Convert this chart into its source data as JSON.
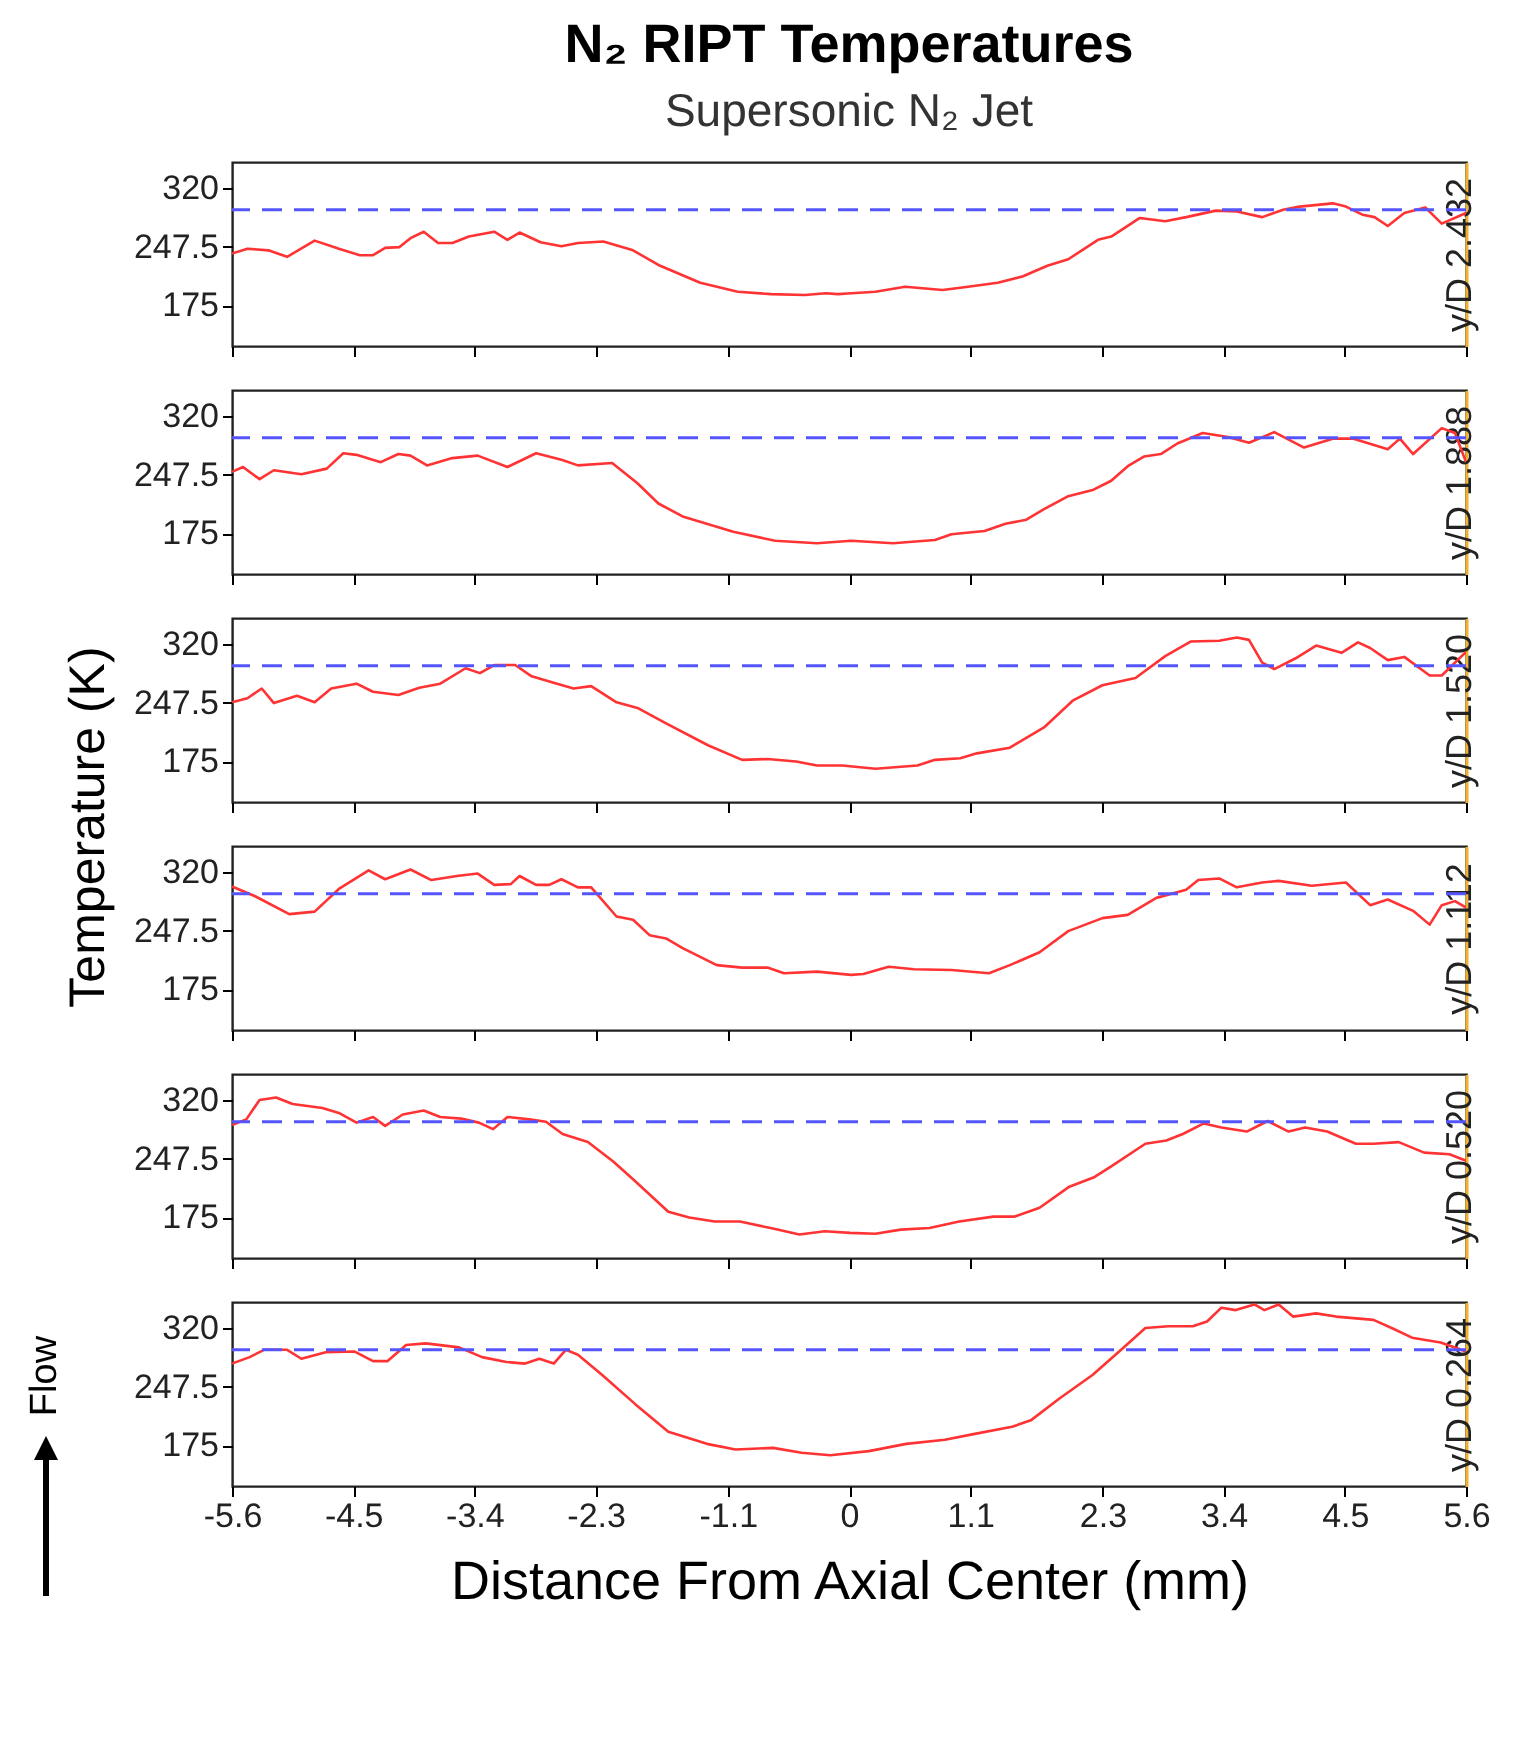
{
  "chart_data": [
    {
      "type": "line",
      "title": "N₂ RIPT Temperatures",
      "subtitle": "Supersonic N₂ Jet",
      "y2label": "y/D 2.432",
      "tick_labels": "y",
      "color": "#ff3333",
      "x": [
        -5.6,
        -5.46,
        -5.27,
        -5.1,
        -4.85,
        -4.63,
        -4.44,
        -4.32,
        -4.21,
        -4.08,
        -3.98,
        -3.86,
        -3.73,
        -3.6,
        -3.45,
        -3.22,
        -3.1,
        -2.99,
        -2.8,
        -2.61,
        -2.46,
        -2.23,
        -1.96,
        -1.73,
        -1.35,
        -1.01,
        -0.71,
        -0.4,
        -0.21,
        -0.1,
        0.02,
        0.24,
        0.51,
        0.85,
        1.08,
        1.35,
        1.58,
        1.8,
        1.99,
        2.26,
        2.38,
        2.64,
        2.87,
        3.06,
        3.33,
        3.52,
        3.75,
        3.94,
        4.09,
        4.39,
        4.51,
        4.66,
        4.77,
        4.89,
        5.04,
        5.23,
        5.38,
        5.6
      ],
      "values": [
        239,
        245,
        243,
        235,
        255,
        245,
        237,
        237,
        246,
        247,
        258,
        266,
        252,
        252,
        260,
        266,
        256,
        265,
        253,
        248,
        252,
        254,
        243,
        225,
        203,
        192,
        189,
        188,
        190,
        189,
        190,
        192,
        198,
        194,
        198,
        203,
        211,
        224,
        232,
        256,
        260,
        283,
        279,
        284,
        292,
        291,
        284,
        293,
        297,
        301,
        297,
        287,
        284,
        273,
        289,
        296,
        276,
        289
      ],
      "xlim": [
        -5.6,
        5.6
      ],
      "xticks": [
        -5.6,
        -4.5,
        -3.4,
        -2.3,
        -1.1,
        0,
        1.1,
        2.3,
        3.4,
        4.5,
        5.6
      ],
      "ylim": [
        125,
        352
      ],
      "yticks": [
        175,
        247.5,
        320
      ],
      "ref_lines": [
        {
          "axis": "y",
          "value": 293,
          "color": "#5555ff",
          "line_style": "dashed"
        }
      ]
    },
    {
      "type": "line",
      "y2label": "y/D 1.888",
      "tick_labels": "y",
      "color": "#ff3333",
      "x": [
        -5.6,
        -5.5,
        -5.35,
        -5.22,
        -4.97,
        -4.74,
        -4.59,
        -4.47,
        -4.25,
        -4.09,
        -3.98,
        -3.83,
        -3.6,
        -3.37,
        -3.1,
        -2.84,
        -2.61,
        -2.46,
        -2.15,
        -1.92,
        -1.73,
        -1.51,
        -1.05,
        -0.67,
        -0.29,
        0.02,
        0.4,
        0.78,
        0.93,
        1.23,
        1.42,
        1.61,
        1.77,
        1.99,
        2.22,
        2.38,
        2.53,
        2.68,
        2.83,
        2.98,
        3.21,
        3.44,
        3.63,
        3.86,
        4.13,
        4.39,
        4.58,
        4.89,
        5.0,
        5.12,
        5.38,
        5.5,
        5.6
      ],
      "values": [
        251,
        257,
        242,
        253,
        248,
        255,
        274,
        272,
        263,
        273,
        271,
        259,
        268,
        271,
        257,
        274,
        266,
        259,
        262,
        237,
        212,
        196,
        177,
        166,
        163,
        166,
        163,
        167,
        174,
        178,
        187,
        192,
        205,
        221,
        229,
        240,
        258,
        270,
        273,
        286,
        299,
        294,
        287,
        300,
        281,
        292,
        292,
        279,
        292,
        273,
        305,
        299,
        263
      ],
      "xlim": [
        -5.6,
        5.6
      ],
      "xticks": [
        -5.6,
        -4.5,
        -3.4,
        -2.3,
        -1.1,
        0,
        1.1,
        2.3,
        3.4,
        4.5,
        5.6
      ],
      "ylim": [
        125,
        352
      ],
      "yticks": [
        175,
        247.5,
        320
      ],
      "ref_lines": [
        {
          "axis": "y",
          "value": 293,
          "color": "#5555ff",
          "line_style": "dashed"
        }
      ]
    },
    {
      "type": "line",
      "y2label": "y/D 1.520",
      "tick_labels": "y",
      "color": "#ff3333",
      "ylabel": "Temperature (K)",
      "x": [
        -5.6,
        -5.46,
        -5.33,
        -5.22,
        -5.01,
        -4.85,
        -4.7,
        -4.47,
        -4.32,
        -4.09,
        -3.9,
        -3.71,
        -3.48,
        -3.35,
        -3.22,
        -3.03,
        -2.88,
        -2.65,
        -2.5,
        -2.34,
        -2.11,
        -1.92,
        -1.66,
        -1.28,
        -0.97,
        -0.74,
        -0.48,
        -0.29,
        -0.06,
        0.24,
        0.62,
        0.78,
        1.01,
        1.16,
        1.46,
        1.77,
        2.03,
        2.3,
        2.6,
        2.87,
        3.1,
        3.36,
        3.52,
        3.63,
        3.75,
        3.86,
        4.05,
        4.24,
        4.47,
        4.62,
        4.73,
        4.89,
        5.04,
        5.27,
        5.38,
        5.6
      ],
      "values": [
        248,
        253,
        265,
        247,
        256,
        248,
        265,
        271,
        261,
        257,
        266,
        271,
        290,
        284,
        294,
        294,
        280,
        271,
        265,
        268,
        248,
        241,
        222,
        195,
        177,
        178,
        175,
        170,
        170,
        166,
        170,
        177,
        179,
        185,
        192,
        217,
        250,
        269,
        278,
        305,
        323,
        324,
        328,
        325,
        297,
        289,
        302,
        318,
        309,
        322,
        315,
        300,
        304,
        281,
        281,
        310
      ],
      "xlim": [
        -5.6,
        5.6
      ],
      "xticks": [
        -5.6,
        -4.5,
        -3.4,
        -2.3,
        -1.1,
        0,
        1.1,
        2.3,
        3.4,
        4.5,
        5.6
      ],
      "ylim": [
        125,
        352
      ],
      "yticks": [
        175,
        247.5,
        320
      ],
      "ref_lines": [
        {
          "axis": "y",
          "value": 293,
          "color": "#5555ff",
          "line_style": "dashed"
        }
      ]
    },
    {
      "type": "line",
      "y2label": "y/D 1.112",
      "tick_labels": "y",
      "color": "#ff3333",
      "x": [
        -5.6,
        -5.39,
        -5.08,
        -4.85,
        -4.63,
        -4.36,
        -4.21,
        -3.98,
        -3.79,
        -3.56,
        -3.37,
        -3.22,
        -3.07,
        -2.99,
        -2.84,
        -2.72,
        -2.61,
        -2.46,
        -2.34,
        -2.11,
        -1.96,
        -1.81,
        -1.66,
        -1.51,
        -1.2,
        -0.97,
        -0.74,
        -0.59,
        -0.29,
        0.02,
        0.13,
        0.36,
        0.59,
        0.93,
        1.27,
        1.46,
        1.73,
        1.99,
        2.3,
        2.53,
        2.79,
        3.06,
        3.17,
        3.36,
        3.52,
        3.75,
        3.9,
        4.2,
        4.51,
        4.73,
        4.89,
        5.12,
        5.27,
        5.38,
        5.5,
        5.6
      ],
      "values": [
        302,
        290,
        268,
        271,
        299,
        322,
        311,
        323,
        310,
        315,
        318,
        304,
        305,
        315,
        304,
        304,
        311,
        301,
        301,
        265,
        261,
        242,
        238,
        226,
        205,
        202,
        202,
        195,
        197,
        193,
        194,
        203,
        200,
        199,
        195,
        205,
        221,
        247,
        263,
        267,
        288,
        298,
        310,
        312,
        301,
        307,
        309,
        303,
        307,
        279,
        286,
        272,
        255,
        279,
        284,
        276
      ],
      "xlim": [
        -5.6,
        5.6
      ],
      "xticks": [
        -5.6,
        -4.5,
        -3.4,
        -2.3,
        -1.1,
        0,
        1.1,
        2.3,
        3.4,
        4.5,
        5.6
      ],
      "ylim": [
        125,
        352
      ],
      "yticks": [
        175,
        247.5,
        320
      ],
      "ref_lines": [
        {
          "axis": "y",
          "value": 293,
          "color": "#5555ff",
          "line_style": "dashed"
        }
      ]
    },
    {
      "type": "line",
      "y2label": "y/D 0.520",
      "tick_labels": "y",
      "color": "#ff3333",
      "x": [
        -5.6,
        -5.47,
        -5.35,
        -5.2,
        -5.05,
        -4.78,
        -4.63,
        -4.47,
        -4.32,
        -4.21,
        -4.05,
        -3.86,
        -3.71,
        -3.52,
        -3.36,
        -3.23,
        -3.1,
        -2.9,
        -2.75,
        -2.6,
        -2.37,
        -2.14,
        -1.95,
        -1.64,
        -1.45,
        -1.22,
        -0.99,
        -0.68,
        -0.45,
        -0.22,
        0.01,
        0.24,
        0.47,
        0.73,
        1.0,
        1.31,
        1.5,
        1.73,
        2.0,
        2.23,
        2.38,
        2.69,
        2.88,
        3.03,
        3.22,
        3.38,
        3.61,
        3.8,
        3.99,
        4.14,
        4.34,
        4.6,
        4.76,
        4.99,
        5.22,
        5.45,
        5.6
      ],
      "values": [
        289,
        296,
        320,
        323,
        315,
        310,
        304,
        292,
        299,
        288,
        302,
        307,
        299,
        297,
        292,
        284,
        299,
        296,
        293,
        278,
        268,
        244,
        221,
        182,
        175,
        170,
        170,
        161,
        154,
        158,
        156,
        155,
        160,
        162,
        170,
        176,
        176,
        187,
        213,
        225,
        238,
        266,
        270,
        278,
        291,
        286,
        281,
        294,
        281,
        286,
        281,
        266,
        266,
        268,
        255,
        253,
        245
      ],
      "xlim": [
        -5.6,
        5.6
      ],
      "xticks": [
        -5.6,
        -4.5,
        -3.4,
        -2.3,
        -1.1,
        0,
        1.1,
        2.3,
        3.4,
        4.5,
        5.6
      ],
      "ylim": [
        125,
        352
      ],
      "yticks": [
        175,
        247.5,
        320
      ],
      "ref_lines": [
        {
          "axis": "y",
          "value": 293,
          "color": "#5555ff",
          "line_style": "dashed"
        }
      ]
    },
    {
      "type": "line",
      "y2label": "y/D 0.264",
      "xlabel": "Distance From Axial Center (mm)",
      "annotations": [
        "Flow"
      ],
      "color": "#ff3333",
      "x": [
        -5.6,
        -5.44,
        -5.31,
        -5.1,
        -4.97,
        -4.75,
        -4.49,
        -4.32,
        -4.19,
        -4.02,
        -3.84,
        -3.54,
        -3.33,
        -3.11,
        -2.94,
        -2.81,
        -2.68,
        -2.57,
        -2.46,
        -2.24,
        -1.94,
        -1.64,
        -1.29,
        -1.03,
        -0.69,
        -0.43,
        -0.17,
        0.18,
        0.52,
        0.87,
        1.13,
        1.48,
        1.65,
        1.91,
        2.21,
        2.47,
        2.69,
        2.9,
        3.12,
        3.25,
        3.38,
        3.51,
        3.68,
        3.77,
        3.9,
        4.03,
        4.24,
        4.42,
        4.76,
        4.94,
        5.11,
        5.37,
        5.6
      ],
      "values": [
        276,
        284,
        293,
        293,
        282,
        290,
        291,
        279,
        279,
        299,
        301,
        296,
        284,
        278,
        276,
        282,
        276,
        293,
        287,
        262,
        226,
        192,
        177,
        170,
        172,
        166,
        163,
        168,
        177,
        182,
        189,
        198,
        206,
        233,
        262,
        293,
        320,
        322,
        322,
        328,
        345,
        342,
        349,
        342,
        349,
        334,
        338,
        334,
        330,
        319,
        308,
        302,
        291
      ],
      "xlim": [
        -5.6,
        5.6
      ],
      "xticks": [
        -5.6,
        -4.5,
        -3.4,
        -2.3,
        -1.1,
        0,
        1.1,
        2.3,
        3.4,
        4.5,
        5.6
      ],
      "ylim": [
        125,
        352
      ],
      "yticks": [
        175,
        247.5,
        320
      ],
      "ref_lines": [
        {
          "axis": "y",
          "value": 293,
          "color": "#5555ff",
          "line_style": "dashed"
        }
      ]
    }
  ]
}
